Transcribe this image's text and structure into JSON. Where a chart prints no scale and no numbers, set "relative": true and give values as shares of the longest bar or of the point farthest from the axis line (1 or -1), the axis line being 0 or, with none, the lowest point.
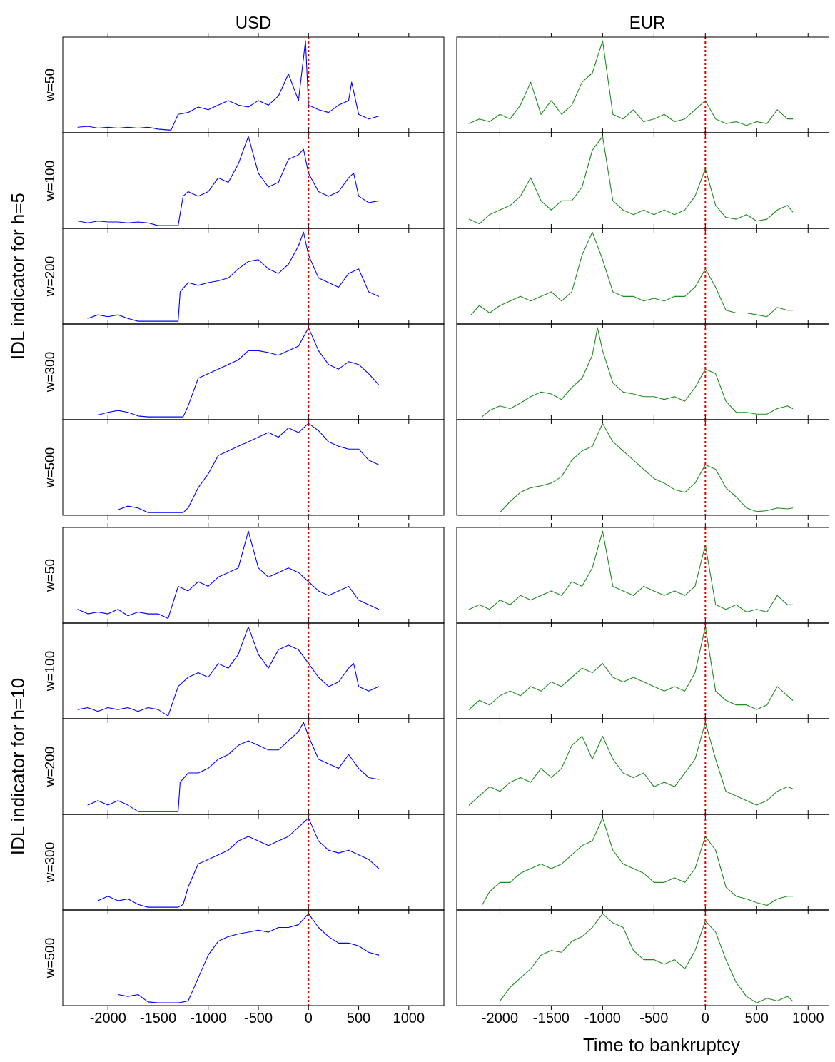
{
  "chart_data": [
    {
      "type": "line",
      "title": "USD",
      "ylabel": "w=50",
      "annotations": [
        "IDL indicator for h=5"
      ],
      "relative": true,
      "color": "#0000ff",
      "xlim": [
        -2450,
        1350
      ],
      "xticks": [
        -2000,
        -1500,
        -1000,
        -500,
        0,
        500,
        1000
      ],
      "tick_labels": false,
      "ref_lines": [
        {
          "axis": "x",
          "value": 0,
          "color": "#e00000",
          "line_style": "dotted"
        }
      ],
      "x": [
        -2300,
        -2200,
        -2100,
        -2000,
        -1900,
        -1800,
        -1700,
        -1600,
        -1500,
        -1400,
        -1370,
        -1300,
        -1200,
        -1100,
        -1000,
        -900,
        -800,
        -700,
        -600,
        -500,
        -400,
        -300,
        -200,
        -100,
        -30,
        0,
        100,
        200,
        300,
        400,
        430,
        500,
        600,
        700
      ],
      "values": [
        0.06,
        0.07,
        0.05,
        0.06,
        0.05,
        0.06,
        0.05,
        0.06,
        0.04,
        0.03,
        0.03,
        0.2,
        0.22,
        0.28,
        0.25,
        0.3,
        0.35,
        0.3,
        0.28,
        0.35,
        0.3,
        0.4,
        0.64,
        0.35,
        1.0,
        0.3,
        0.25,
        0.22,
        0.3,
        0.35,
        0.55,
        0.2,
        0.15,
        0.18
      ]
    },
    {
      "type": "line",
      "title": "EUR",
      "relative": true,
      "color": "#1e8c1e",
      "xlim": [
        -2420,
        1290
      ],
      "xticks": [
        -2000,
        -1500,
        -1000,
        -500,
        0,
        500,
        1000
      ],
      "tick_labels": false,
      "ref_lines": [
        {
          "axis": "x",
          "value": 0,
          "color": "#e00000",
          "line_style": "dotted"
        }
      ],
      "x": [
        -2300,
        -2200,
        -2100,
        -2000,
        -1900,
        -1800,
        -1700,
        -1600,
        -1500,
        -1400,
        -1300,
        -1200,
        -1100,
        -1000,
        -900,
        -800,
        -700,
        -600,
        -500,
        -400,
        -300,
        -200,
        -100,
        0,
        100,
        200,
        300,
        400,
        500,
        600,
        700,
        800,
        850
      ],
      "values": [
        0.1,
        0.15,
        0.12,
        0.2,
        0.15,
        0.3,
        0.55,
        0.2,
        0.35,
        0.2,
        0.3,
        0.55,
        0.65,
        1.0,
        0.2,
        0.15,
        0.25,
        0.12,
        0.15,
        0.2,
        0.12,
        0.15,
        0.25,
        0.35,
        0.15,
        0.1,
        0.12,
        0.08,
        0.12,
        0.1,
        0.25,
        0.15,
        0.15
      ]
    },
    {
      "type": "line",
      "ylabel": "w=100",
      "relative": true,
      "color": "#0000ff",
      "xlim": [
        -2450,
        1350
      ],
      "xticks": [
        -2000,
        -1500,
        -1000,
        -500,
        0,
        500,
        1000
      ],
      "tick_labels": false,
      "ref_lines": [
        {
          "axis": "x",
          "value": 0,
          "color": "#e00000",
          "line_style": "dotted"
        }
      ],
      "x": [
        -2300,
        -2200,
        -2100,
        -2000,
        -1900,
        -1800,
        -1700,
        -1600,
        -1500,
        -1400,
        -1300,
        -1250,
        -1200,
        -1100,
        -1000,
        -900,
        -800,
        -700,
        -600,
        -500,
        -400,
        -300,
        -200,
        -100,
        -50,
        0,
        100,
        200,
        300,
        400,
        450,
        500,
        600,
        700
      ],
      "values": [
        0.08,
        0.06,
        0.08,
        0.07,
        0.07,
        0.06,
        0.07,
        0.06,
        0.03,
        0.03,
        0.03,
        0.35,
        0.4,
        0.35,
        0.4,
        0.55,
        0.5,
        0.7,
        1.0,
        0.6,
        0.45,
        0.5,
        0.75,
        0.8,
        0.86,
        0.6,
        0.4,
        0.35,
        0.4,
        0.55,
        0.6,
        0.35,
        0.28,
        0.3
      ]
    },
    {
      "type": "line",
      "relative": true,
      "color": "#1e8c1e",
      "xlim": [
        -2420,
        1290
      ],
      "xticks": [
        -2000,
        -1500,
        -1000,
        -500,
        0,
        500,
        1000
      ],
      "tick_labels": false,
      "ref_lines": [
        {
          "axis": "x",
          "value": 0,
          "color": "#e00000",
          "line_style": "dotted"
        }
      ],
      "x": [
        -2300,
        -2200,
        -2100,
        -2000,
        -1900,
        -1800,
        -1700,
        -1600,
        -1500,
        -1400,
        -1300,
        -1200,
        -1100,
        -1000,
        -900,
        -800,
        -700,
        -600,
        -500,
        -400,
        -300,
        -200,
        -100,
        0,
        100,
        200,
        300,
        400,
        500,
        600,
        700,
        800,
        850
      ],
      "values": [
        0.1,
        0.05,
        0.15,
        0.2,
        0.25,
        0.35,
        0.55,
        0.3,
        0.2,
        0.3,
        0.3,
        0.45,
        0.85,
        1.0,
        0.3,
        0.2,
        0.15,
        0.2,
        0.15,
        0.2,
        0.15,
        0.2,
        0.35,
        0.65,
        0.25,
        0.12,
        0.1,
        0.15,
        0.08,
        0.1,
        0.2,
        0.25,
        0.18
      ]
    },
    {
      "type": "line",
      "ylabel": "w=200",
      "relative": true,
      "color": "#0000ff",
      "xlim": [
        -2450,
        1350
      ],
      "xticks": [
        -2000,
        -1500,
        -1000,
        -500,
        0,
        500,
        1000
      ],
      "tick_labels": false,
      "ref_lines": [
        {
          "axis": "x",
          "value": 0,
          "color": "#e00000",
          "line_style": "dotted"
        }
      ],
      "x": [
        -2200,
        -2100,
        -2000,
        -1900,
        -1800,
        -1700,
        -1600,
        -1500,
        -1400,
        -1300,
        -1280,
        -1200,
        -1100,
        -1000,
        -900,
        -800,
        -700,
        -600,
        -500,
        -400,
        -300,
        -200,
        -100,
        -50,
        0,
        100,
        200,
        300,
        400,
        500,
        600,
        700
      ],
      "values": [
        0.06,
        0.1,
        0.08,
        0.1,
        0.06,
        0.03,
        0.03,
        0.03,
        0.03,
        0.03,
        0.35,
        0.45,
        0.42,
        0.45,
        0.47,
        0.5,
        0.6,
        0.68,
        0.7,
        0.6,
        0.55,
        0.65,
        0.85,
        1.0,
        0.75,
        0.5,
        0.45,
        0.4,
        0.55,
        0.6,
        0.35,
        0.3
      ]
    },
    {
      "type": "line",
      "relative": true,
      "color": "#1e8c1e",
      "xlim": [
        -2420,
        1290
      ],
      "xticks": [
        -2000,
        -1500,
        -1000,
        -500,
        0,
        500,
        1000
      ],
      "tick_labels": false,
      "ref_lines": [
        {
          "axis": "x",
          "value": 0,
          "color": "#e00000",
          "line_style": "dotted"
        }
      ],
      "x": [
        -2280,
        -2200,
        -2100,
        -2000,
        -1900,
        -1800,
        -1700,
        -1600,
        -1500,
        -1400,
        -1300,
        -1200,
        -1100,
        -1000,
        -900,
        -800,
        -700,
        -600,
        -500,
        -400,
        -300,
        -200,
        -100,
        0,
        100,
        200,
        300,
        400,
        500,
        600,
        700,
        800,
        850
      ],
      "values": [
        0.1,
        0.2,
        0.12,
        0.2,
        0.25,
        0.3,
        0.25,
        0.3,
        0.35,
        0.25,
        0.35,
        0.75,
        1.0,
        0.7,
        0.35,
        0.3,
        0.3,
        0.25,
        0.28,
        0.25,
        0.3,
        0.3,
        0.4,
        0.6,
        0.4,
        0.15,
        0.12,
        0.12,
        0.1,
        0.08,
        0.18,
        0.15,
        0.15
      ]
    },
    {
      "type": "line",
      "ylabel": "w=300",
      "relative": true,
      "color": "#0000ff",
      "xlim": [
        -2450,
        1350
      ],
      "xticks": [
        -2000,
        -1500,
        -1000,
        -500,
        0,
        500,
        1000
      ],
      "tick_labels": false,
      "ref_lines": [
        {
          "axis": "x",
          "value": 0,
          "color": "#e00000",
          "line_style": "dotted"
        }
      ],
      "x": [
        -2100,
        -2000,
        -1900,
        -1800,
        -1700,
        -1600,
        -1500,
        -1400,
        -1300,
        -1250,
        -1200,
        -1100,
        -1000,
        -900,
        -800,
        -700,
        -600,
        -500,
        -400,
        -300,
        -200,
        -100,
        0,
        100,
        200,
        300,
        400,
        500,
        600,
        700
      ],
      "values": [
        0.05,
        0.08,
        0.1,
        0.08,
        0.04,
        0.03,
        0.03,
        0.03,
        0.03,
        0.03,
        0.15,
        0.45,
        0.5,
        0.55,
        0.6,
        0.65,
        0.75,
        0.75,
        0.73,
        0.7,
        0.75,
        0.8,
        1.0,
        0.75,
        0.6,
        0.55,
        0.63,
        0.6,
        0.5,
        0.38
      ]
    },
    {
      "type": "line",
      "relative": true,
      "color": "#1e8c1e",
      "xlim": [
        -2420,
        1290
      ],
      "xticks": [
        -2000,
        -1500,
        -1000,
        -500,
        0,
        500,
        1000
      ],
      "tick_labels": false,
      "ref_lines": [
        {
          "axis": "x",
          "value": 0,
          "color": "#e00000",
          "line_style": "dotted"
        }
      ],
      "x": [
        -2175,
        -2100,
        -2000,
        -1900,
        -1800,
        -1700,
        -1600,
        -1500,
        -1400,
        -1300,
        -1200,
        -1100,
        -1050,
        -1000,
        -900,
        -800,
        -700,
        -600,
        -500,
        -400,
        -300,
        -200,
        -100,
        0,
        100,
        200,
        300,
        400,
        500,
        600,
        700,
        800,
        850
      ],
      "values": [
        0.03,
        0.1,
        0.15,
        0.12,
        0.18,
        0.25,
        0.3,
        0.28,
        0.22,
        0.35,
        0.45,
        0.7,
        1.0,
        0.75,
        0.4,
        0.3,
        0.28,
        0.25,
        0.25,
        0.22,
        0.25,
        0.2,
        0.35,
        0.55,
        0.5,
        0.2,
        0.08,
        0.08,
        0.06,
        0.06,
        0.12,
        0.15,
        0.12
      ]
    },
    {
      "type": "line",
      "ylabel": "w=500",
      "relative": true,
      "color": "#0000ff",
      "xlim": [
        -2450,
        1350
      ],
      "xticks": [
        -2000,
        -1500,
        -1000,
        -500,
        0,
        500,
        1000
      ],
      "tick_labels": false,
      "ref_lines": [
        {
          "axis": "x",
          "value": 0,
          "color": "#e00000",
          "line_style": "dotted"
        }
      ],
      "x": [
        -1900,
        -1800,
        -1700,
        -1600,
        -1500,
        -1400,
        -1300,
        -1250,
        -1200,
        -1100,
        -1000,
        -900,
        -800,
        -700,
        -600,
        -500,
        -400,
        -300,
        -200,
        -100,
        0,
        100,
        200,
        300,
        400,
        500,
        600,
        700
      ],
      "values": [
        0.06,
        0.1,
        0.08,
        0.03,
        0.03,
        0.03,
        0.03,
        0.03,
        0.08,
        0.3,
        0.45,
        0.65,
        0.7,
        0.75,
        0.8,
        0.85,
        0.9,
        0.85,
        0.95,
        0.9,
        1.0,
        0.92,
        0.8,
        0.75,
        0.72,
        0.72,
        0.6,
        0.55
      ]
    },
    {
      "type": "line",
      "relative": true,
      "color": "#1e8c1e",
      "xlim": [
        -2420,
        1290
      ],
      "xticks": [
        -2000,
        -1500,
        -1000,
        -500,
        0,
        500,
        1000
      ],
      "tick_labels": false,
      "ref_lines": [
        {
          "axis": "x",
          "value": 0,
          "color": "#e00000",
          "line_style": "dotted"
        }
      ],
      "x": [
        -2000,
        -1900,
        -1800,
        -1700,
        -1600,
        -1500,
        -1400,
        -1300,
        -1200,
        -1100,
        -1000,
        -900,
        -800,
        -700,
        -600,
        -500,
        -400,
        -300,
        -200,
        -100,
        0,
        100,
        200,
        300,
        400,
        500,
        600,
        700,
        800,
        850
      ],
      "values": [
        0.03,
        0.15,
        0.25,
        0.3,
        0.32,
        0.35,
        0.42,
        0.6,
        0.7,
        0.75,
        1.0,
        0.8,
        0.7,
        0.6,
        0.5,
        0.4,
        0.35,
        0.28,
        0.25,
        0.35,
        0.55,
        0.5,
        0.3,
        0.2,
        0.08,
        0.04,
        0.05,
        0.08,
        0.07,
        0.08
      ]
    },
    {
      "type": "line",
      "ylabel": "w=50",
      "annotations": [
        "IDL indicator for h=10"
      ],
      "relative": true,
      "color": "#0000ff",
      "xlim": [
        -2450,
        1350
      ],
      "xticks": [
        -2000,
        -1500,
        -1000,
        -500,
        0,
        500,
        1000
      ],
      "tick_labels": false,
      "ref_lines": [
        {
          "axis": "x",
          "value": 0,
          "color": "#e00000",
          "line_style": "dotted"
        }
      ],
      "x": [
        -2300,
        -2200,
        -2100,
        -2000,
        -1900,
        -1800,
        -1700,
        -1600,
        -1500,
        -1400,
        -1300,
        -1200,
        -1100,
        -1000,
        -900,
        -800,
        -700,
        -600,
        -500,
        -400,
        -300,
        -200,
        -100,
        0,
        100,
        200,
        300,
        400,
        500,
        600,
        700
      ],
      "values": [
        0.15,
        0.1,
        0.12,
        0.1,
        0.15,
        0.08,
        0.12,
        0.1,
        0.1,
        0.05,
        0.4,
        0.35,
        0.45,
        0.4,
        0.5,
        0.55,
        0.6,
        1.0,
        0.6,
        0.5,
        0.55,
        0.6,
        0.55,
        0.45,
        0.35,
        0.3,
        0.35,
        0.4,
        0.25,
        0.2,
        0.15
      ]
    },
    {
      "type": "line",
      "relative": true,
      "color": "#1e8c1e",
      "xlim": [
        -2420,
        1290
      ],
      "xticks": [
        -2000,
        -1500,
        -1000,
        -500,
        0,
        500,
        1000
      ],
      "tick_labels": false,
      "ref_lines": [
        {
          "axis": "x",
          "value": 0,
          "color": "#e00000",
          "line_style": "dotted"
        }
      ],
      "x": [
        -2300,
        -2200,
        -2100,
        -2000,
        -1900,
        -1800,
        -1700,
        -1600,
        -1500,
        -1400,
        -1300,
        -1200,
        -1100,
        -1000,
        -900,
        -800,
        -700,
        -600,
        -500,
        -400,
        -300,
        -200,
        -100,
        0,
        100,
        200,
        300,
        400,
        500,
        600,
        700,
        800,
        850
      ],
      "values": [
        0.15,
        0.2,
        0.15,
        0.25,
        0.2,
        0.3,
        0.25,
        0.3,
        0.35,
        0.3,
        0.45,
        0.4,
        0.6,
        1.0,
        0.4,
        0.35,
        0.3,
        0.4,
        0.35,
        0.3,
        0.35,
        0.3,
        0.4,
        0.85,
        0.2,
        0.15,
        0.2,
        0.12,
        0.15,
        0.12,
        0.3,
        0.2,
        0.2
      ]
    },
    {
      "type": "line",
      "ylabel": "w=100",
      "relative": true,
      "color": "#0000ff",
      "xlim": [
        -2450,
        1350
      ],
      "xticks": [
        -2000,
        -1500,
        -1000,
        -500,
        0,
        500,
        1000
      ],
      "tick_labels": false,
      "ref_lines": [
        {
          "axis": "x",
          "value": 0,
          "color": "#e00000",
          "line_style": "dotted"
        }
      ],
      "x": [
        -2300,
        -2200,
        -2100,
        -2000,
        -1900,
        -1800,
        -1700,
        -1600,
        -1500,
        -1400,
        -1300,
        -1200,
        -1100,
        -1000,
        -900,
        -800,
        -700,
        -600,
        -500,
        -400,
        -300,
        -200,
        -100,
        0,
        100,
        200,
        300,
        400,
        450,
        500,
        600,
        700
      ],
      "values": [
        0.1,
        0.12,
        0.08,
        0.12,
        0.1,
        0.12,
        0.08,
        0.12,
        0.1,
        0.03,
        0.35,
        0.45,
        0.5,
        0.45,
        0.6,
        0.55,
        0.7,
        1.0,
        0.7,
        0.55,
        0.75,
        0.8,
        0.75,
        0.6,
        0.45,
        0.35,
        0.4,
        0.55,
        0.6,
        0.35,
        0.3,
        0.35
      ]
    },
    {
      "type": "line",
      "relative": true,
      "color": "#1e8c1e",
      "xlim": [
        -2420,
        1290
      ],
      "xticks": [
        -2000,
        -1500,
        -1000,
        -500,
        0,
        500,
        1000
      ],
      "tick_labels": false,
      "ref_lines": [
        {
          "axis": "x",
          "value": 0,
          "color": "#e00000",
          "line_style": "dotted"
        }
      ],
      "x": [
        -2300,
        -2200,
        -2100,
        -2000,
        -1900,
        -1800,
        -1700,
        -1600,
        -1500,
        -1400,
        -1300,
        -1200,
        -1100,
        -1000,
        -900,
        -800,
        -700,
        -600,
        -500,
        -400,
        -300,
        -200,
        -100,
        0,
        100,
        200,
        300,
        400,
        500,
        600,
        700,
        800,
        850
      ],
      "values": [
        0.1,
        0.2,
        0.15,
        0.25,
        0.3,
        0.25,
        0.35,
        0.3,
        0.4,
        0.35,
        0.45,
        0.55,
        0.5,
        0.6,
        0.45,
        0.4,
        0.45,
        0.4,
        0.35,
        0.3,
        0.35,
        0.3,
        0.5,
        1.0,
        0.3,
        0.2,
        0.15,
        0.15,
        0.1,
        0.15,
        0.35,
        0.25,
        0.2
      ]
    },
    {
      "type": "line",
      "ylabel": "w=200",
      "relative": true,
      "color": "#0000ff",
      "xlim": [
        -2450,
        1350
      ],
      "xticks": [
        -2000,
        -1500,
        -1000,
        -500,
        0,
        500,
        1000
      ],
      "tick_labels": false,
      "ref_lines": [
        {
          "axis": "x",
          "value": 0,
          "color": "#e00000",
          "line_style": "dotted"
        }
      ],
      "x": [
        -2200,
        -2100,
        -2000,
        -1900,
        -1800,
        -1700,
        -1600,
        -1500,
        -1400,
        -1300,
        -1280,
        -1200,
        -1100,
        -1000,
        -900,
        -800,
        -700,
        -600,
        -500,
        -400,
        -300,
        -200,
        -100,
        -50,
        0,
        100,
        200,
        300,
        400,
        500,
        600,
        700
      ],
      "values": [
        0.1,
        0.15,
        0.1,
        0.15,
        0.1,
        0.03,
        0.03,
        0.03,
        0.03,
        0.03,
        0.35,
        0.45,
        0.45,
        0.5,
        0.6,
        0.65,
        0.75,
        0.8,
        0.75,
        0.7,
        0.7,
        0.8,
        0.9,
        1.0,
        0.85,
        0.6,
        0.55,
        0.5,
        0.65,
        0.5,
        0.4,
        0.38
      ]
    },
    {
      "type": "line",
      "relative": true,
      "color": "#1e8c1e",
      "xlim": [
        -2420,
        1290
      ],
      "xticks": [
        -2000,
        -1500,
        -1000,
        -500,
        0,
        500,
        1000
      ],
      "tick_labels": false,
      "ref_lines": [
        {
          "axis": "x",
          "value": 0,
          "color": "#e00000",
          "line_style": "dotted"
        }
      ],
      "x": [
        -2300,
        -2200,
        -2100,
        -2000,
        -1900,
        -1800,
        -1700,
        -1600,
        -1500,
        -1400,
        -1300,
        -1200,
        -1100,
        -1000,
        -900,
        -800,
        -700,
        -600,
        -500,
        -400,
        -300,
        -200,
        -100,
        0,
        100,
        200,
        300,
        400,
        500,
        600,
        700,
        800,
        850
      ],
      "values": [
        0.1,
        0.2,
        0.3,
        0.25,
        0.35,
        0.4,
        0.35,
        0.5,
        0.4,
        0.5,
        0.75,
        0.85,
        0.6,
        0.85,
        0.6,
        0.45,
        0.4,
        0.45,
        0.3,
        0.35,
        0.3,
        0.45,
        0.6,
        1.0,
        0.6,
        0.25,
        0.2,
        0.15,
        0.1,
        0.15,
        0.25,
        0.3,
        0.28
      ]
    },
    {
      "type": "line",
      "ylabel": "w=300",
      "relative": true,
      "color": "#0000ff",
      "xlim": [
        -2450,
        1350
      ],
      "xticks": [
        -2000,
        -1500,
        -1000,
        -500,
        0,
        500,
        1000
      ],
      "tick_labels": false,
      "ref_lines": [
        {
          "axis": "x",
          "value": 0,
          "color": "#e00000",
          "line_style": "dotted"
        }
      ],
      "x": [
        -2100,
        -2000,
        -1900,
        -1800,
        -1700,
        -1600,
        -1500,
        -1400,
        -1300,
        -1250,
        -1200,
        -1100,
        -1000,
        -900,
        -800,
        -700,
        -600,
        -500,
        -400,
        -300,
        -200,
        -100,
        0,
        100,
        200,
        300,
        400,
        500,
        600,
        700
      ],
      "values": [
        0.1,
        0.15,
        0.1,
        0.12,
        0.06,
        0.03,
        0.03,
        0.03,
        0.03,
        0.06,
        0.25,
        0.5,
        0.55,
        0.6,
        0.65,
        0.75,
        0.8,
        0.75,
        0.7,
        0.75,
        0.8,
        0.9,
        1.0,
        0.75,
        0.65,
        0.62,
        0.65,
        0.6,
        0.55,
        0.45
      ]
    },
    {
      "type": "line",
      "relative": true,
      "color": "#1e8c1e",
      "xlim": [
        -2420,
        1290
      ],
      "xticks": [
        -2000,
        -1500,
        -1000,
        -500,
        0,
        500,
        1000
      ],
      "tick_labels": false,
      "ref_lines": [
        {
          "axis": "x",
          "value": 0,
          "color": "#e00000",
          "line_style": "dotted"
        }
      ],
      "x": [
        -2175,
        -2100,
        -2000,
        -1900,
        -1800,
        -1700,
        -1600,
        -1500,
        -1400,
        -1300,
        -1200,
        -1100,
        -1000,
        -900,
        -800,
        -700,
        -600,
        -500,
        -400,
        -300,
        -200,
        -100,
        0,
        100,
        200,
        300,
        400,
        500,
        600,
        700,
        800,
        850
      ],
      "values": [
        0.05,
        0.2,
        0.3,
        0.3,
        0.4,
        0.45,
        0.5,
        0.45,
        0.5,
        0.6,
        0.7,
        0.75,
        1.0,
        0.65,
        0.5,
        0.45,
        0.4,
        0.3,
        0.3,
        0.35,
        0.3,
        0.45,
        0.8,
        0.65,
        0.25,
        0.15,
        0.12,
        0.08,
        0.05,
        0.12,
        0.15,
        0.15
      ]
    },
    {
      "type": "line",
      "ylabel": "w=500",
      "relative": true,
      "color": "#0000ff",
      "xlim": [
        -2450,
        1350
      ],
      "xticks": [
        -2000,
        -1500,
        -1000,
        -500,
        0,
        500,
        1000
      ],
      "tick_labels": "x",
      "ref_lines": [
        {
          "axis": "x",
          "value": 0,
          "color": "#e00000",
          "line_style": "dotted"
        }
      ],
      "x": [
        -1900,
        -1800,
        -1700,
        -1600,
        -1500,
        -1400,
        -1300,
        -1200,
        -1100,
        -1000,
        -900,
        -800,
        -700,
        -600,
        -500,
        -400,
        -300,
        -200,
        -100,
        0,
        100,
        200,
        300,
        400,
        500,
        600,
        700
      ],
      "values": [
        0.12,
        0.1,
        0.12,
        0.04,
        0.03,
        0.03,
        0.03,
        0.05,
        0.3,
        0.55,
        0.7,
        0.75,
        0.78,
        0.8,
        0.82,
        0.8,
        0.85,
        0.85,
        0.88,
        1.0,
        0.85,
        0.75,
        0.68,
        0.68,
        0.65,
        0.58,
        0.55
      ]
    },
    {
      "type": "line",
      "xlabel": "Time to bankruptcy",
      "relative": true,
      "color": "#1e8c1e",
      "xlim": [
        -2420,
        1290
      ],
      "xticks": [
        -2000,
        -1500,
        -1000,
        -500,
        0,
        500,
        1000
      ],
      "tick_labels": "x",
      "ref_lines": [
        {
          "axis": "x",
          "value": 0,
          "color": "#e00000",
          "line_style": "dotted"
        }
      ],
      "x": [
        -2000,
        -1900,
        -1800,
        -1700,
        -1600,
        -1500,
        -1400,
        -1300,
        -1200,
        -1100,
        -1000,
        -900,
        -800,
        -700,
        -600,
        -500,
        -400,
        -300,
        -200,
        -100,
        0,
        100,
        200,
        300,
        400,
        500,
        600,
        700,
        800,
        850
      ],
      "values": [
        0.05,
        0.2,
        0.3,
        0.4,
        0.55,
        0.6,
        0.58,
        0.7,
        0.75,
        0.85,
        1.0,
        0.9,
        0.85,
        0.6,
        0.5,
        0.5,
        0.45,
        0.5,
        0.4,
        0.6,
        0.92,
        0.8,
        0.5,
        0.25,
        0.1,
        0.03,
        0.08,
        0.05,
        0.1,
        0.05
      ]
    }
  ]
}
